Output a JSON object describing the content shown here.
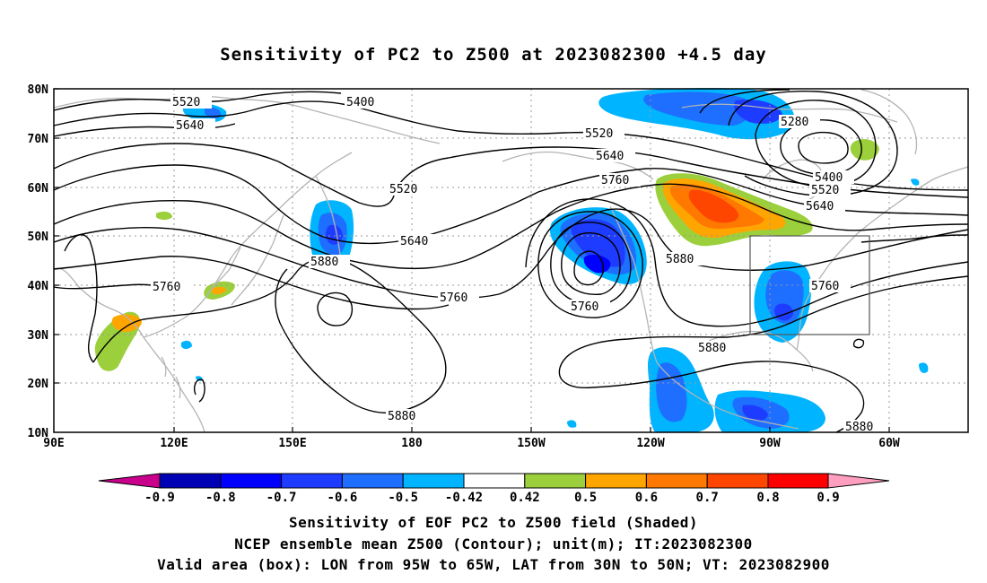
{
  "title": "Sensitivity of PC2 to Z500 at 2023082300 +4.5 day",
  "map": {
    "lat_labels": [
      "80N",
      "70N",
      "60N",
      "50N",
      "40N",
      "30N",
      "20N",
      "10N"
    ],
    "lon_labels": [
      "90E",
      "120E",
      "150E",
      "180",
      "150W",
      "120W",
      "90W",
      "60W"
    ],
    "contour_labels": [
      "5520",
      "5640",
      "5400",
      "5520",
      "5640",
      "5760",
      "5280",
      "5400",
      "5520",
      "5640",
      "5520",
      "5640",
      "5880",
      "5760",
      "5760",
      "5760",
      "5880",
      "5760",
      "5880",
      "5880",
      "5880"
    ],
    "colors": {
      "contour": "#000000",
      "coastline": "#b4b4b4",
      "box": "#555555"
    },
    "valid_box": {
      "lon_west": -95,
      "lon_east": -65,
      "lat_south": 30,
      "lat_north": 50
    }
  },
  "colorbar": {
    "labels": [
      "-0.9",
      "-0.8",
      "-0.7",
      "-0.6",
      "-0.5",
      "-0.42",
      "0.42",
      "0.5",
      "0.6",
      "0.7",
      "0.8",
      "0.9"
    ],
    "colors": [
      "#c8008c",
      "#0000b4",
      "#0000ff",
      "#1e3cff",
      "#1e6eff",
      "#00b4ff",
      "#ffffff",
      "#9bd03c",
      "#ffa500",
      "#ff7800",
      "#ff4600",
      "#ff0000",
      "#ff9ebe"
    ]
  },
  "captions": {
    "line1": "Sensitivity of EOF PC2 to Z500 field (Shaded)",
    "line2": "NCEP ensemble mean Z500 (Contour); unit(m); IT:2023082300",
    "line3": "Valid area (box): LON from 95W to 65W, LAT from 30N to 50N; VT: 2023082900"
  }
}
